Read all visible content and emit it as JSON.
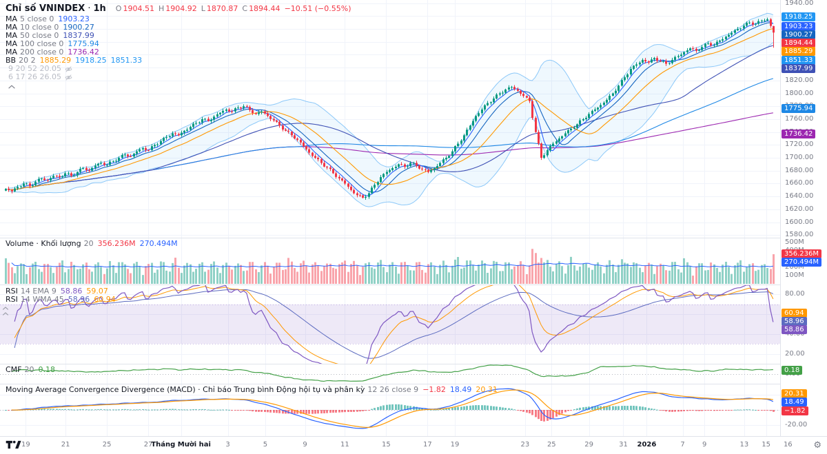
{
  "header": {
    "title": "Chỉ số VNINDEX",
    "separator": "·",
    "interval": "1h",
    "ohlc": [
      {
        "label": "O",
        "value": "1904.51"
      },
      {
        "label": "H",
        "value": "1904.92"
      },
      {
        "label": "L",
        "value": "1870.87"
      },
      {
        "label": "C",
        "value": "1894.44"
      }
    ],
    "change": "−10.51 (−0.55%)",
    "change_color": "#f23645"
  },
  "legend_overlays": [
    {
      "name": "MA",
      "params": "5 close 0",
      "values": [
        {
          "text": "1903.23",
          "color": "#2962ff"
        }
      ]
    },
    {
      "name": "MA",
      "params": "10 close 0",
      "values": [
        {
          "text": "1900.27",
          "color": "#1565c0"
        }
      ]
    },
    {
      "name": "MA",
      "params": "50 close 0",
      "values": [
        {
          "text": "1837.99",
          "color": "#3f51b5"
        }
      ]
    },
    {
      "name": "MA",
      "params": "100 close 0",
      "values": [
        {
          "text": "1775.94",
          "color": "#1e88e5"
        }
      ]
    },
    {
      "name": "MA",
      "params": "200 close 0",
      "values": [
        {
          "text": "1736.42",
          "color": "#9c27b0"
        }
      ]
    },
    {
      "name": "BB",
      "params": "20 2",
      "values": [
        {
          "text": "1885.29",
          "color": "#ff9800"
        },
        {
          "text": "1918.25",
          "color": "#2196f3"
        },
        {
          "text": "1851.33",
          "color": "#2196f3"
        }
      ]
    }
  ],
  "hidden_indicators": [
    {
      "params": "9 20 52 20.05"
    },
    {
      "params": "6 17 26 26.05"
    }
  ],
  "pane_legends": {
    "volume": {
      "name": "Volume · Khối lượng",
      "params": "20",
      "values": [
        {
          "text": "356.236M",
          "color": "#f23645"
        },
        {
          "text": "270.494M",
          "color": "#2962ff"
        }
      ]
    },
    "rsi": [
      {
        "name": "RSI",
        "params": "14 EMA 9",
        "values": [
          {
            "text": "58.86",
            "color": "#7e57c2"
          },
          {
            "text": "59.07",
            "color": "#ff9800"
          }
        ]
      },
      {
        "name": "RSI",
        "params": "14 WMA 45",
        "values": [
          {
            "text": "58.96",
            "color": "#5c6bc0"
          },
          {
            "text": "60.94",
            "color": "#ff9800"
          }
        ]
      }
    ],
    "cmf": {
      "name": "CMF",
      "params": "20",
      "values": [
        {
          "text": "0.18",
          "color": "#43a047"
        }
      ]
    },
    "macd": {
      "name": "Moving Average Convergence Divergence (MACD) · Chỉ báo Trung bình Động hội tụ và phân kỳ",
      "params": "12 26 close 9",
      "values": [
        {
          "text": "−1.82",
          "color": "#f23645"
        },
        {
          "text": "18.49",
          "color": "#2962ff"
        },
        {
          "text": "20.31",
          "color": "#ff9800"
        }
      ]
    }
  },
  "time_axis": {
    "labels": [
      {
        "text": "19",
        "f": 0.033
      },
      {
        "text": "21",
        "f": 0.084
      },
      {
        "text": "25",
        "f": 0.137
      },
      {
        "text": "27",
        "f": 0.19
      },
      {
        "text": "Tháng Mười hai",
        "f": 0.232,
        "bold": true
      },
      {
        "text": "3",
        "f": 0.292
      },
      {
        "text": "5",
        "f": 0.34
      },
      {
        "text": "9",
        "f": 0.391
      },
      {
        "text": "11",
        "f": 0.442
      },
      {
        "text": "15",
        "f": 0.495
      },
      {
        "text": "17",
        "f": 0.548
      },
      {
        "text": "19",
        "f": 0.583
      },
      {
        "text": "23",
        "f": 0.673
      },
      {
        "text": "25",
        "f": 0.707
      },
      {
        "text": "29",
        "f": 0.755
      },
      {
        "text": "31",
        "f": 0.799
      },
      {
        "text": "2026",
        "f": 0.829,
        "bold": true
      },
      {
        "text": "7",
        "f": 0.875
      },
      {
        "text": "9",
        "f": 0.903
      },
      {
        "text": "13",
        "f": 0.954
      },
      {
        "text": "15",
        "f": 0.982
      },
      {
        "text": "16",
        "f": 1.01
      }
    ]
  },
  "chart_data": [
    {
      "type": "candlestick",
      "name": "price",
      "title": "Chỉ số VNINDEX · 1h",
      "ylim": [
        1576,
        1945
      ],
      "yticks_range": [
        1580,
        1940
      ],
      "ytick_step": 20,
      "bars_per_sample": 2,
      "close_samples": [
        1652,
        1648,
        1655,
        1660,
        1656,
        1663,
        1668,
        1665,
        1672,
        1670,
        1676,
        1672,
        1678,
        1684,
        1680,
        1688,
        1692,
        1689,
        1695,
        1700,
        1705,
        1702,
        1710,
        1715,
        1712,
        1720,
        1726,
        1732,
        1738,
        1735,
        1742,
        1748,
        1754,
        1760,
        1757,
        1764,
        1770,
        1775,
        1772,
        1778,
        1780,
        1774,
        1768,
        1772,
        1765,
        1758,
        1750,
        1742,
        1735,
        1728,
        1718,
        1708,
        1700,
        1692,
        1685,
        1676,
        1668,
        1660,
        1650,
        1642,
        1638,
        1645,
        1658,
        1670,
        1678,
        1684,
        1690,
        1686,
        1692,
        1688,
        1682,
        1678,
        1684,
        1692,
        1700,
        1710,
        1722,
        1735,
        1750,
        1765,
        1775,
        1785,
        1792,
        1800,
        1806,
        1810,
        1804,
        1796,
        1788,
        1740,
        1700,
        1712,
        1722,
        1730,
        1738,
        1745,
        1752,
        1760,
        1768,
        1775,
        1782,
        1790,
        1800,
        1812,
        1825,
        1838,
        1845,
        1852,
        1848,
        1855,
        1850,
        1846,
        1852,
        1858,
        1864,
        1870,
        1866,
        1872,
        1878,
        1875,
        1882,
        1888,
        1894,
        1900,
        1905,
        1910,
        1908,
        1913,
        1915,
        1894.44
      ],
      "last_bar": {
        "o": 1904.51,
        "h": 1904.92,
        "l": 1870.87,
        "c": 1894.44
      },
      "up_color": "#089981",
      "down_color": "#f23645",
      "ma": [
        {
          "length": 5,
          "color": "#2962ff",
          "last": 1903.23
        },
        {
          "length": 10,
          "color": "#1565c0",
          "last": 1900.27
        },
        {
          "length": 50,
          "color": "#3f51b5",
          "last": 1837.99
        },
        {
          "length": 100,
          "color": "#1e88e5",
          "last": 1775.94
        },
        {
          "length": 200,
          "color": "#9c27b0",
          "last": 1736.42
        }
      ],
      "bb": {
        "length": 20,
        "mult": 2,
        "basis_color": "#ff9800",
        "band_line": "rgba(33,150,243,0.5)",
        "fill": "rgba(33,150,243,0.07)",
        "last_basis": 1885.29,
        "last_upper": 1918.25,
        "last_lower": 1851.33
      },
      "badges": [
        {
          "value": 1918.25,
          "label": "1918.25",
          "bg": "#2196f3"
        },
        {
          "value": 1903.23,
          "label": "1903.23",
          "bg": "#2962ff"
        },
        {
          "value": 1900.27,
          "label": "1900.27",
          "bg": "#1565c0"
        },
        {
          "value": 1894.44,
          "label": "1894.44",
          "bg": "#f23645"
        },
        {
          "value": 1885.29,
          "label": "1885.29",
          "bg": "#ff9800"
        },
        {
          "value": 1851.33,
          "label": "1851.33",
          "bg": "#2196f3"
        },
        {
          "value": 1837.99,
          "label": "1837.99",
          "bg": "#3f51b5"
        },
        {
          "value": 1775.94,
          "label": "1775.94",
          "bg": "#1e88e5"
        },
        {
          "value": 1736.42,
          "label": "1736.42",
          "bg": "#9c27b0"
        }
      ]
    },
    {
      "type": "bar",
      "name": "volume",
      "title": "Volume · Khối lượng 20",
      "ylim": [
        0,
        530
      ],
      "yticks": [
        100,
        200,
        300,
        400,
        500
      ],
      "unit": "M",
      "last_volume_m": 356.236,
      "ma_length": 20,
      "ma_last_m": 270.494,
      "ma_color": "#2962ff",
      "up_color": "rgba(8,153,129,0.45)",
      "down_color": "rgba(242,54,69,0.45)",
      "badges": [
        {
          "value": 356,
          "label": "356.236M",
          "bg": "#f23645"
        },
        {
          "value": 270,
          "label": "270.494M",
          "bg": "#2962ff"
        }
      ]
    },
    {
      "type": "line",
      "name": "rsi",
      "title": "RSI 14 (EMA 9 / WMA 45)",
      "ylim": [
        10,
        90
      ],
      "yticks": [
        20,
        40,
        60,
        80
      ],
      "band": [
        30,
        70
      ],
      "band_fill": "rgba(126,87,194,0.13)",
      "band_edge": "rgba(126,87,194,0.4)",
      "series": [
        {
          "name": "RSI 14",
          "color": "#7e57c2",
          "last": 58.86
        },
        {
          "name": "EMA 9",
          "color": "#ff9800",
          "last": 59.07
        },
        {
          "name": "WMA 45",
          "color": "#5c6bc0",
          "last": 58.96
        }
      ],
      "badges": [
        {
          "value": 60.94,
          "label": "60.94",
          "bg": "#ff9800"
        },
        {
          "value": 58.96,
          "label": "58.96",
          "bg": "#5c6bc0"
        },
        {
          "value": 58.86,
          "label": "58.86",
          "bg": "#7e57c2"
        }
      ]
    },
    {
      "type": "line",
      "name": "cmf",
      "title": "CMF 20",
      "ylim": [
        -0.6,
        0.6
      ],
      "yticks": [
        0
      ],
      "color": "#43a047",
      "last": 0.18,
      "badges": [
        {
          "value": 0.18,
          "label": "0.18",
          "bg": "#43a047"
        }
      ]
    },
    {
      "type": "macd",
      "name": "macd",
      "title": "MACD 12 26 close 9",
      "ylim": [
        -34,
        34
      ],
      "yticks": [
        20,
        0,
        -20
      ],
      "macd_color": "#2962ff",
      "signal_color": "#ff9800",
      "hist_pos": "rgba(38,166,154,0.65)",
      "hist_neg": "rgba(242,54,69,0.65)",
      "last": {
        "hist": -1.82,
        "macd": 18.49,
        "signal": 20.31
      },
      "badges": [
        {
          "value": 20.31,
          "label": "20.31",
          "bg": "#ff9800"
        },
        {
          "value": 18.49,
          "label": "18.49",
          "bg": "#2962ff"
        },
        {
          "value": -1.82,
          "label": "−1.82",
          "bg": "#f23645"
        }
      ]
    }
  ]
}
